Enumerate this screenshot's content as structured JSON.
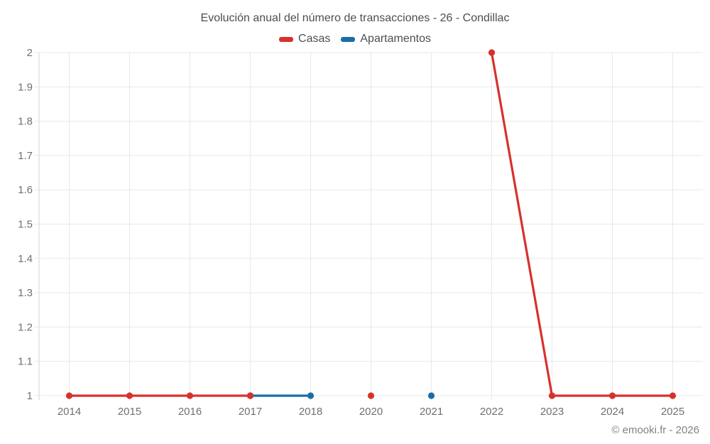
{
  "chart": {
    "title": "Evolución anual del número de transacciones - 26 - Condillac",
    "legend": [
      {
        "label": "Casas",
        "color": "#d7312c"
      },
      {
        "label": "Apartamentos",
        "color": "#1a6ea6"
      }
    ]
  },
  "chart_data": {
    "type": "line",
    "title": "Evolución anual del número de transacciones - 26 - Condillac",
    "categories": [
      "2014",
      "2015",
      "2016",
      "2017",
      "2018",
      "2020",
      "2021",
      "2022",
      "2023",
      "2024",
      "2025"
    ],
    "series": [
      {
        "name": "Casas",
        "color": "#d7312c",
        "values": [
          1,
          1,
          1,
          1,
          null,
          1,
          null,
          2,
          1,
          1,
          1
        ]
      },
      {
        "name": "Apartamentos",
        "color": "#1a6ea6",
        "values": [
          null,
          null,
          null,
          1,
          1,
          null,
          1,
          null,
          null,
          null,
          null
        ]
      }
    ],
    "xlabel": "",
    "ylabel": "",
    "ylim": [
      1,
      2
    ],
    "yticks": [
      1,
      1.1,
      1.2,
      1.3,
      1.4,
      1.5,
      1.6,
      1.7,
      1.8,
      1.9,
      2
    ],
    "grid": true,
    "legend_position": "top"
  },
  "footer": {
    "copyright": "© emooki.fr - 2026"
  },
  "colors": {
    "grid": "#e8e8e8",
    "axis_line": "#d6d6d6",
    "axis_text": "#6d7175",
    "title_text": "#4b4f52",
    "footer_text": "#7e8285"
  }
}
